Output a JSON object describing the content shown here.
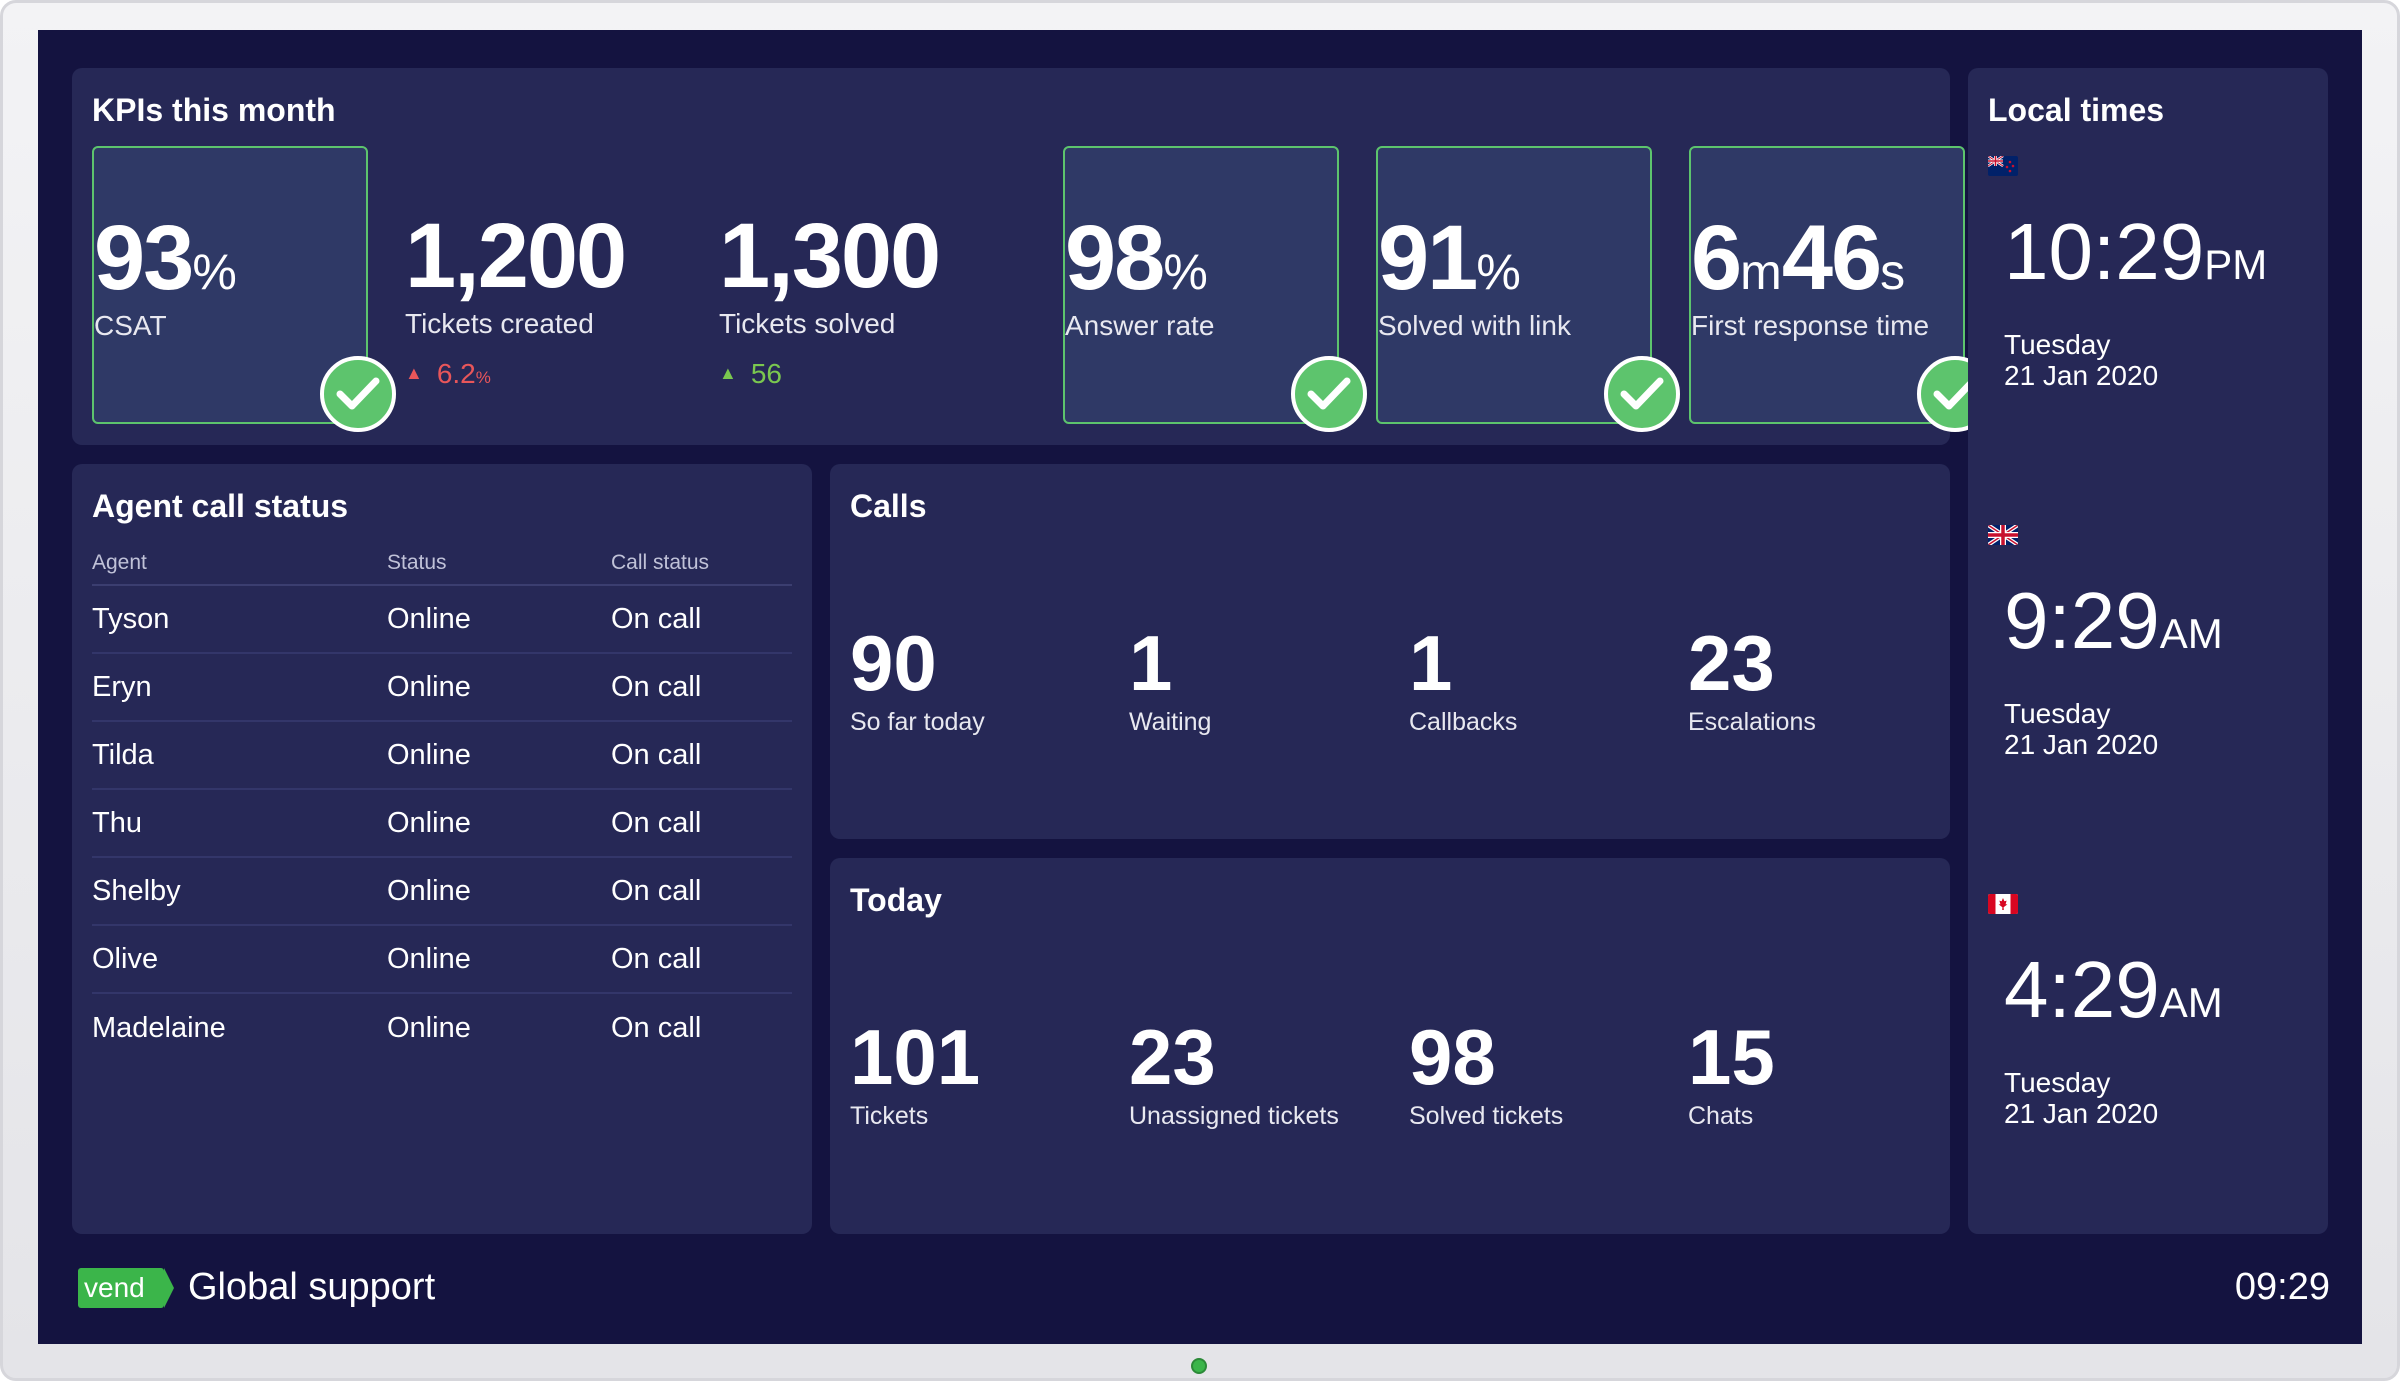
{
  "kpis": {
    "title": "KPIs this month",
    "items": [
      {
        "value": "93",
        "unit": "%",
        "label": "CSAT",
        "boxed": true,
        "target_met": true
      },
      {
        "value": "1,200",
        "unit": "",
        "label": "Tickets created",
        "trend": "6.2",
        "trend_unit": "%",
        "trend_color": "red"
      },
      {
        "value": "1,300",
        "unit": "",
        "label": "Tickets solved",
        "trend": "56",
        "trend_unit": "",
        "trend_color": "green"
      },
      {
        "value": "98",
        "unit": "%",
        "label": "Answer rate",
        "boxed": true,
        "target_met": true
      },
      {
        "value": "91",
        "unit": "%",
        "label": "Solved with link",
        "boxed": true,
        "target_met": true
      },
      {
        "value_parts": [
          "6",
          "m",
          "46",
          "s"
        ],
        "label": "First response time",
        "boxed": true,
        "target_met": true
      }
    ]
  },
  "agents": {
    "title": "Agent call status",
    "columns": [
      "Agent",
      "Status",
      "Call status"
    ],
    "rows": [
      [
        "Tyson",
        "Online",
        "On call"
      ],
      [
        "Eryn",
        "Online",
        "On call"
      ],
      [
        "Tilda",
        "Online",
        "On call"
      ],
      [
        "Thu",
        "Online",
        "On call"
      ],
      [
        "Shelby",
        "Online",
        "On call"
      ],
      [
        "Olive",
        "Online",
        "On call"
      ],
      [
        "Madelaine",
        "Online",
        "On call"
      ]
    ]
  },
  "calls": {
    "title": "Calls",
    "stats": [
      {
        "value": "90",
        "label": "So far today"
      },
      {
        "value": "1",
        "label": "Waiting"
      },
      {
        "value": "1",
        "label": "Callbacks"
      },
      {
        "value": "23",
        "label": "Escalations"
      }
    ]
  },
  "today": {
    "title": "Today",
    "stats": [
      {
        "value": "101",
        "label": "Tickets"
      },
      {
        "value": "23",
        "label": "Unassigned tickets"
      },
      {
        "value": "98",
        "label": "Solved tickets"
      },
      {
        "value": "15",
        "label": "Chats"
      }
    ]
  },
  "times": {
    "title": "Local times",
    "zones": [
      {
        "flag": "new-zealand-flag-icon",
        "time": "10:29",
        "ampm": "PM",
        "day": "Tuesday",
        "date": "21 Jan 2020"
      },
      {
        "flag": "united-kingdom-flag-icon",
        "time": "9:29",
        "ampm": "AM",
        "day": "Tuesday",
        "date": "21 Jan 2020"
      },
      {
        "flag": "canada-flag-icon",
        "time": "4:29",
        "ampm": "AM",
        "day": "Tuesday",
        "date": "21 Jan 2020"
      }
    ]
  },
  "footer": {
    "logo": "vend",
    "title": "Global support",
    "clock": "09:29"
  },
  "colors": {
    "background": "#141340",
    "panel": "#262856",
    "accent_green": "#5dc46d",
    "trend_red": "#e8565a",
    "trend_green": "#7ac74f"
  }
}
